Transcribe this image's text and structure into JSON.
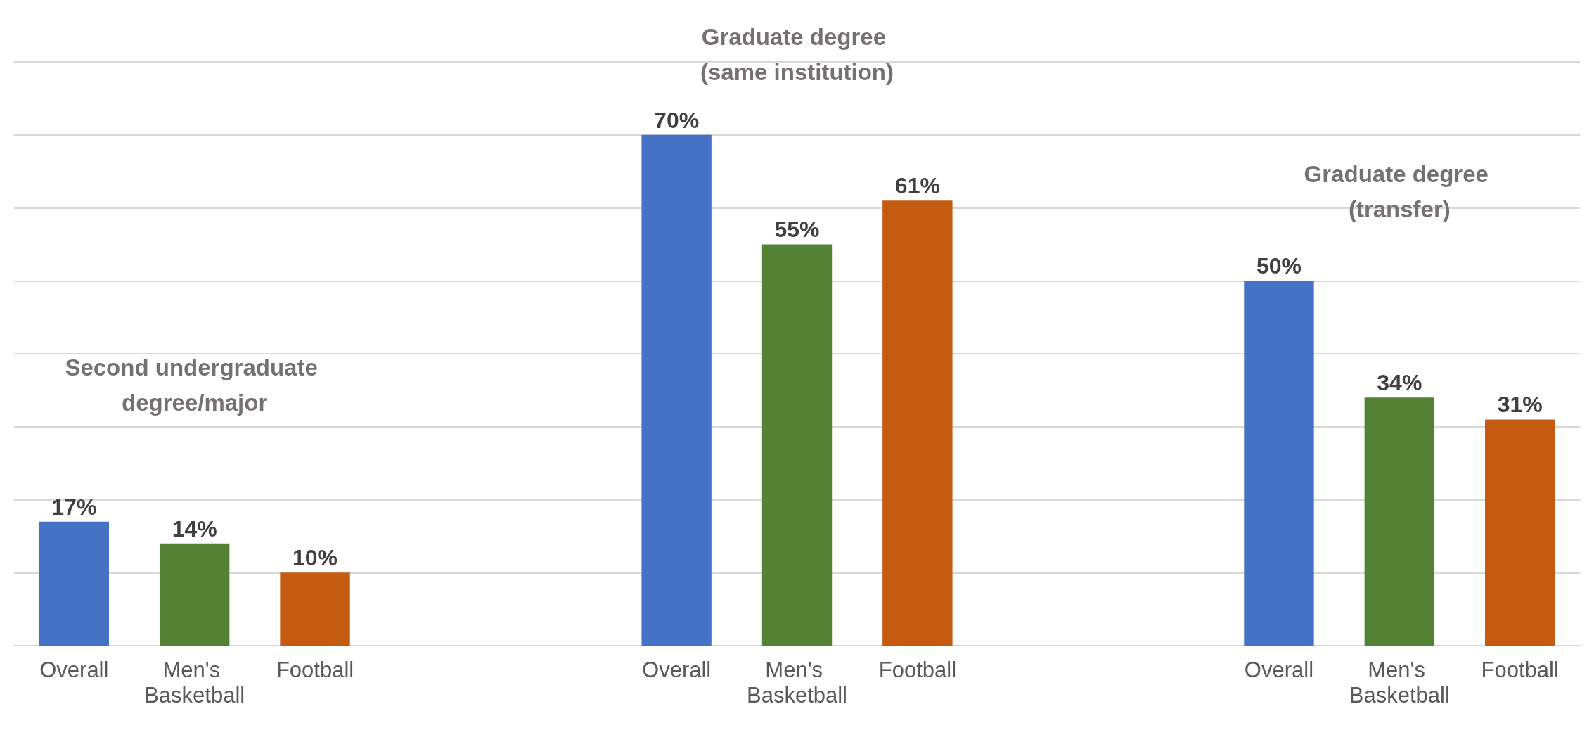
{
  "chart_data": {
    "type": "bar",
    "categories": [
      "Overall",
      "Men's Basketball",
      "Football",
      null,
      null,
      "Overall",
      "Men's Basketball",
      "Football",
      null,
      null,
      "Overall",
      "Men's Basketball",
      "Football"
    ],
    "values": [
      17,
      14,
      10,
      null,
      null,
      70,
      55,
      61,
      null,
      null,
      50,
      34,
      31
    ],
    "colors": [
      "#4472c4",
      "#548235",
      "#c55a11",
      null,
      null,
      "#4472c4",
      "#548235",
      "#c55a11",
      null,
      null,
      "#4472c4",
      "#548235",
      "#c55a11"
    ],
    "value_labels": [
      "17%",
      "14%",
      "10%",
      null,
      null,
      "70%",
      "55%",
      "61%",
      null,
      null,
      "50%",
      "34%",
      "31%"
    ],
    "ylim": [
      0,
      80
    ],
    "yticks": [
      0,
      10,
      20,
      30,
      40,
      50,
      60,
      70,
      80
    ],
    "grid": "y",
    "tick_labels": "x",
    "annotations": [
      "Second undergraduate degree/major",
      "Graduate degree (same institution)",
      "Graduate degree (transfer)"
    ]
  }
}
